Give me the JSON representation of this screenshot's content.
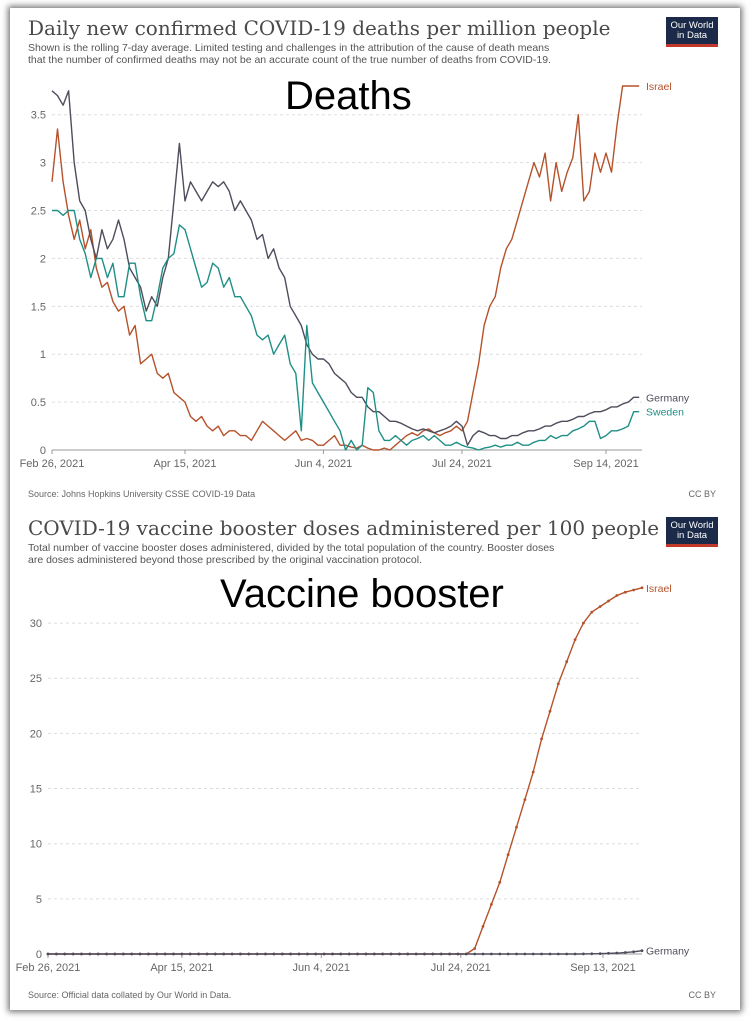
{
  "deaths": {
    "title": "Daily new confirmed COVID-19 deaths per million people",
    "subtitle_line1": "Shown is the rolling 7-day average. Limited testing and challenges in the attribution of the cause of death means",
    "subtitle_line2": "that the number of confirmed deaths may not be an accurate count of the true number of deaths from COVID-19.",
    "overlay_label": "Deaths",
    "logo_line1": "Our World",
    "logo_line2": "in Data",
    "source": "Source: Johns Hopkins University CSSE COVID-19 Data",
    "license": "CC BY"
  },
  "booster": {
    "title": "COVID-19 vaccine booster doses administered per 100 people",
    "subtitle_line1": "Total number of vaccine booster doses administered, divided by the total population of the country. Booster doses",
    "subtitle_line2": "are doses administered beyond those prescribed by the original vaccination protocol.",
    "overlay_label": "Vaccine booster",
    "logo_line1": "Our World",
    "logo_line2": "in Data",
    "source": "Source: Official data collated by Our World in Data.",
    "license": "CC BY"
  },
  "colors": {
    "israel": "#b5522b",
    "germany": "#4d4d5c",
    "sweden": "#1f8f86",
    "grid": "#dddddd",
    "axis_text": "#666666"
  },
  "chart_data": [
    {
      "type": "line",
      "title": "Daily new confirmed COVID-19 deaths per million people",
      "xlabel": "",
      "ylabel": "",
      "x_domain_days": [
        0,
        213
      ],
      "ylim": [
        0,
        3.8
      ],
      "y_ticks": [
        0,
        0.5,
        1,
        1.5,
        2,
        2.5,
        3,
        3.5
      ],
      "x_ticks": [
        {
          "day": 0,
          "label": "Feb 26, 2021"
        },
        {
          "day": 48,
          "label": "Apr 15, 2021"
        },
        {
          "day": 98,
          "label": "Jun 4, 2021"
        },
        {
          "day": 148,
          "label": "Jul 24, 2021"
        },
        {
          "day": 200,
          "label": "Sep 14, 2021"
        }
      ],
      "grid": true,
      "legend": "inline-right",
      "series": [
        {
          "name": "Israel",
          "color_key": "israel",
          "x": [
            0,
            2,
            4,
            6,
            8,
            10,
            12,
            14,
            16,
            18,
            20,
            22,
            24,
            26,
            28,
            30,
            32,
            34,
            36,
            38,
            40,
            42,
            44,
            46,
            48,
            50,
            52,
            54,
            56,
            58,
            60,
            62,
            64,
            66,
            68,
            70,
            72,
            74,
            76,
            78,
            80,
            82,
            84,
            86,
            88,
            90,
            92,
            94,
            96,
            98,
            100,
            102,
            104,
            106,
            108,
            110,
            112,
            114,
            116,
            118,
            120,
            122,
            124,
            126,
            128,
            130,
            132,
            134,
            136,
            138,
            140,
            142,
            144,
            146,
            148,
            150,
            152,
            154,
            156,
            158,
            160,
            162,
            164,
            166,
            168,
            170,
            172,
            174,
            176,
            178,
            180,
            182,
            184,
            186,
            188,
            190,
            192,
            194,
            196,
            198,
            200,
            202,
            204,
            206,
            208,
            210,
            212
          ],
          "values": [
            2.8,
            3.35,
            2.8,
            2.45,
            2.2,
            2.4,
            2.1,
            2.3,
            1.9,
            1.7,
            1.75,
            1.55,
            1.45,
            1.5,
            1.2,
            1.3,
            0.9,
            0.95,
            1.0,
            0.8,
            0.75,
            0.8,
            0.6,
            0.55,
            0.5,
            0.35,
            0.3,
            0.35,
            0.25,
            0.2,
            0.25,
            0.15,
            0.2,
            0.2,
            0.15,
            0.15,
            0.1,
            0.2,
            0.3,
            0.25,
            0.2,
            0.15,
            0.1,
            0.15,
            0.2,
            0.1,
            0.12,
            0.1,
            0.05,
            0.05,
            0.1,
            0.15,
            0.05,
            0.05,
            0.03,
            0.02,
            0.05,
            0.02,
            0.0,
            0.0,
            0.02,
            0.0,
            0.05,
            0.1,
            0.15,
            0.18,
            0.15,
            0.2,
            0.22,
            0.18,
            0.15,
            0.18,
            0.2,
            0.25,
            0.2,
            0.3,
            0.6,
            0.9,
            1.3,
            1.5,
            1.6,
            1.9,
            2.1,
            2.2,
            2.4,
            2.6,
            2.8,
            3.0,
            2.85,
            3.1,
            2.6,
            3.0,
            2.7,
            2.9,
            3.05,
            3.5,
            2.6,
            2.7,
            3.1,
            2.9,
            3.1,
            2.9,
            3.4,
            3.8,
            3.8,
            3.8,
            3.8
          ]
        },
        {
          "name": "Germany",
          "color_key": "germany",
          "x": [
            0,
            2,
            4,
            6,
            8,
            10,
            12,
            14,
            16,
            18,
            20,
            22,
            24,
            26,
            28,
            30,
            32,
            34,
            36,
            38,
            40,
            42,
            44,
            46,
            48,
            50,
            52,
            54,
            56,
            58,
            60,
            62,
            64,
            66,
            68,
            70,
            72,
            74,
            76,
            78,
            80,
            82,
            84,
            86,
            88,
            90,
            92,
            94,
            96,
            98,
            100,
            102,
            104,
            106,
            108,
            110,
            112,
            114,
            116,
            118,
            120,
            122,
            124,
            126,
            128,
            130,
            132,
            134,
            136,
            138,
            140,
            142,
            144,
            146,
            148,
            150,
            152,
            154,
            156,
            158,
            160,
            162,
            164,
            166,
            168,
            170,
            172,
            174,
            176,
            178,
            180,
            182,
            184,
            186,
            188,
            190,
            192,
            194,
            196,
            198,
            200,
            202,
            204,
            206,
            208,
            210,
            212
          ],
          "values": [
            3.75,
            3.7,
            3.6,
            3.75,
            3.0,
            2.6,
            2.5,
            2.2,
            2.0,
            2.3,
            2.1,
            2.2,
            2.4,
            2.2,
            1.9,
            1.8,
            1.7,
            1.45,
            1.6,
            1.5,
            1.8,
            2.0,
            2.6,
            3.2,
            2.6,
            2.8,
            2.7,
            2.6,
            2.7,
            2.8,
            2.75,
            2.8,
            2.7,
            2.5,
            2.6,
            2.5,
            2.4,
            2.2,
            2.25,
            2.0,
            2.1,
            1.9,
            1.8,
            1.5,
            1.4,
            1.3,
            1.1,
            1.0,
            0.95,
            0.95,
            0.9,
            0.8,
            0.75,
            0.7,
            0.6,
            0.55,
            0.55,
            0.45,
            0.4,
            0.4,
            0.35,
            0.3,
            0.3,
            0.28,
            0.25,
            0.22,
            0.2,
            0.22,
            0.2,
            0.18,
            0.2,
            0.22,
            0.25,
            0.3,
            0.25,
            0.05,
            0.15,
            0.2,
            0.18,
            0.15,
            0.15,
            0.12,
            0.12,
            0.15,
            0.15,
            0.18,
            0.2,
            0.2,
            0.22,
            0.25,
            0.25,
            0.28,
            0.3,
            0.3,
            0.32,
            0.35,
            0.35,
            0.38,
            0.4,
            0.4,
            0.42,
            0.45,
            0.45,
            0.48,
            0.5,
            0.55,
            0.55
          ]
        },
        {
          "name": "Sweden",
          "color_key": "sweden",
          "x": [
            0,
            2,
            4,
            6,
            8,
            10,
            12,
            14,
            16,
            18,
            20,
            22,
            24,
            26,
            28,
            30,
            32,
            34,
            36,
            38,
            40,
            42,
            44,
            46,
            48,
            50,
            52,
            54,
            56,
            58,
            60,
            62,
            64,
            66,
            68,
            70,
            72,
            74,
            76,
            78,
            80,
            82,
            84,
            86,
            88,
            90,
            92,
            94,
            96,
            98,
            100,
            102,
            104,
            106,
            108,
            110,
            112,
            114,
            116,
            118,
            120,
            122,
            124,
            126,
            128,
            130,
            132,
            134,
            136,
            138,
            140,
            142,
            144,
            146,
            148,
            150,
            152,
            154,
            156,
            158,
            160,
            162,
            164,
            166,
            168,
            170,
            172,
            174,
            176,
            178,
            180,
            182,
            184,
            186,
            188,
            190,
            192,
            194,
            196,
            198,
            200,
            202,
            204,
            206,
            208,
            210,
            212
          ],
          "values": [
            2.5,
            2.5,
            2.45,
            2.5,
            2.5,
            2.2,
            2.05,
            1.8,
            2.0,
            2.0,
            1.8,
            1.95,
            1.6,
            1.6,
            1.95,
            1.95,
            1.6,
            1.35,
            1.35,
            1.6,
            1.9,
            2.0,
            2.05,
            2.35,
            2.3,
            2.1,
            1.9,
            1.7,
            1.75,
            1.95,
            1.9,
            1.7,
            1.8,
            1.6,
            1.6,
            1.5,
            1.4,
            1.2,
            1.15,
            1.2,
            1.0,
            1.1,
            1.2,
            0.9,
            0.8,
            0.2,
            1.3,
            0.7,
            0.6,
            0.5,
            0.4,
            0.3,
            0.2,
            0.0,
            0.1,
            0.0,
            0.05,
            0.65,
            0.6,
            0.2,
            0.1,
            0.1,
            0.15,
            0.1,
            0.05,
            0.1,
            0.12,
            0.15,
            0.1,
            0.15,
            0.1,
            0.05,
            0.05,
            0.08,
            0.05,
            0.03,
            0.02,
            0.0,
            0.02,
            0.03,
            0.05,
            0.03,
            0.05,
            0.05,
            0.08,
            0.05,
            0.05,
            0.08,
            0.1,
            0.1,
            0.15,
            0.12,
            0.15,
            0.15,
            0.2,
            0.22,
            0.25,
            0.3,
            0.3,
            0.12,
            0.15,
            0.2,
            0.2,
            0.22,
            0.25,
            0.4,
            0.4
          ]
        }
      ]
    },
    {
      "type": "line",
      "title": "COVID-19 vaccine booster doses administered per 100 people",
      "xlabel": "",
      "ylabel": "",
      "x_domain_days": [
        0,
        213
      ],
      "ylim": [
        0,
        33
      ],
      "y_ticks": [
        0,
        5,
        10,
        15,
        20,
        25,
        30
      ],
      "x_ticks": [
        {
          "day": 0,
          "label": "Feb 26, 2021"
        },
        {
          "day": 48,
          "label": "Apr 15, 2021"
        },
        {
          "day": 98,
          "label": "Jun 4, 2021"
        },
        {
          "day": 148,
          "label": "Jul 24, 2021"
        },
        {
          "day": 199,
          "label": "Sep 13, 2021"
        }
      ],
      "grid": true,
      "legend": "inline-right",
      "series": [
        {
          "name": "Israel",
          "color_key": "israel",
          "x": [
            0,
            150,
            153,
            156,
            159,
            162,
            165,
            168,
            171,
            174,
            177,
            180,
            183,
            186,
            189,
            192,
            195,
            198,
            201,
            204,
            207,
            210,
            213
          ],
          "values": [
            0,
            0,
            0.5,
            2.5,
            4.5,
            6.5,
            9.0,
            11.5,
            14.0,
            16.5,
            19.5,
            22.0,
            24.5,
            26.5,
            28.5,
            30.0,
            31.0,
            31.5,
            32.0,
            32.5,
            32.8,
            33.0,
            33.2
          ]
        },
        {
          "name": "Germany",
          "color_key": "germany",
          "x": [
            0,
            190,
            195,
            200,
            205,
            210,
            213
          ],
          "values": [
            0,
            0,
            0.02,
            0.05,
            0.1,
            0.2,
            0.3
          ]
        }
      ]
    }
  ]
}
